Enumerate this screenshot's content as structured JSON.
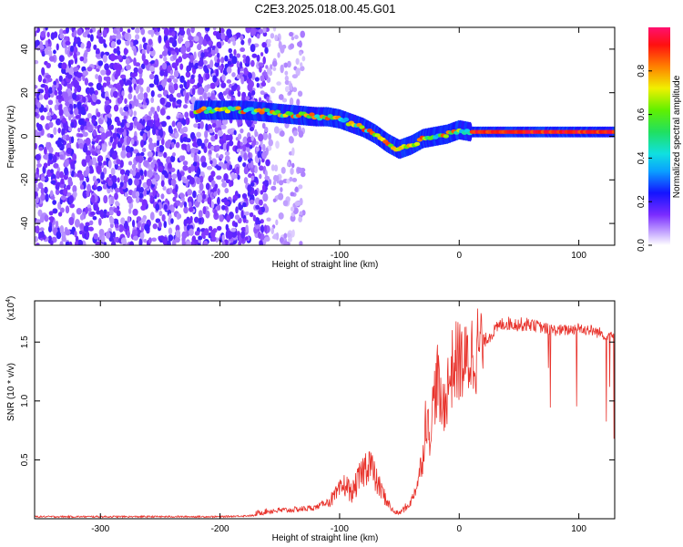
{
  "title": "C2E3.2025.018.00.45.G01",
  "colors": {
    "snr_line": "#e8322b",
    "spectrogram_low": "#8a3cf0",
    "spectrogram_high": "#ff0000"
  },
  "chart_data": [
    {
      "type": "heatmap",
      "xlabel": "Height of straight line (km)",
      "ylabel": "Frequency (Hz)",
      "xlim": [
        -355,
        130
      ],
      "ylim": [
        -50,
        50
      ],
      "xticks": [
        -300,
        -200,
        -100,
        0,
        100
      ],
      "yticks": [
        -40,
        -20,
        0,
        20,
        40
      ],
      "colorbar": {
        "label": "Normalized spectral amplitude",
        "range": [
          0,
          1
        ],
        "ticks": [
          "0.0",
          "0.2",
          "0.4",
          "0.6",
          "0.8"
        ],
        "tick_values": [
          0,
          0.2,
          0.4,
          0.6,
          0.8
        ]
      },
      "ridge": {
        "x": [
          -220,
          -200,
          -180,
          -160,
          -140,
          -120,
          -110,
          -100,
          -90,
          -80,
          -70,
          -60,
          -50,
          -40,
          -30,
          -20,
          -10,
          0,
          10,
          20,
          40,
          60,
          80,
          100,
          130
        ],
        "frequency": [
          12,
          12,
          12,
          11,
          10,
          9,
          9,
          8,
          6,
          4,
          1,
          -3,
          -6,
          -4,
          -1,
          0,
          1,
          3,
          2,
          2,
          2,
          2,
          2,
          2,
          2
        ]
      },
      "noise_region_x": [
        -355,
        -130
      ],
      "dense_noise_region_x": [
        -355,
        -160
      ]
    },
    {
      "type": "line",
      "xlabel": "Height of straight line (km)",
      "ylabel": "SNR (10 * v/v)",
      "y_multiplier_label": "(x10",
      "y_multiplier_exponent": "4",
      "y_multiplier_close": ")",
      "xlim": [
        -355,
        130
      ],
      "ylim": [
        0,
        1.85
      ],
      "xticks": [
        -300,
        -200,
        -100,
        0,
        100
      ],
      "yticks": [
        "0.5",
        "1.0",
        "1.5"
      ],
      "ytick_values": [
        0.5,
        1.0,
        1.5
      ],
      "series": [
        {
          "x": [
            -355,
            -300,
            -250,
            -200,
            -170,
            -160,
            -140,
            -120,
            -105,
            -95,
            -90,
            -80,
            -75,
            -70,
            -65,
            -60,
            -55,
            -50,
            -45,
            -40,
            -35,
            -30,
            -28,
            -25,
            -22,
            -20,
            -18,
            -15,
            -12,
            -10,
            -8,
            -5,
            0,
            5,
            10,
            15,
            20,
            25,
            30,
            35,
            40,
            50,
            60,
            70,
            80,
            90,
            100,
            110,
            120,
            130
          ],
          "values": [
            0.01,
            0.01,
            0.01,
            0.01,
            0.02,
            0.04,
            0.05,
            0.07,
            0.15,
            0.25,
            0.18,
            0.35,
            0.42,
            0.28,
            0.2,
            0.12,
            0.05,
            0.04,
            0.08,
            0.15,
            0.3,
            0.55,
            0.9,
            0.7,
            0.95,
            1.1,
            1.2,
            0.9,
            1.0,
            1.1,
            1.2,
            1.3,
            1.35,
            1.3,
            1.4,
            1.45,
            1.5,
            1.55,
            1.6,
            1.65,
            1.66,
            1.65,
            1.65,
            1.62,
            1.6,
            1.6,
            1.62,
            1.6,
            1.57,
            1.56
          ]
        }
      ]
    }
  ]
}
